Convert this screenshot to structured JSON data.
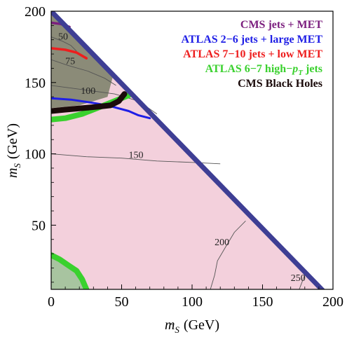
{
  "chart_data": {
    "type": "line",
    "title": "",
    "x_axis": {
      "label_main": "m",
      "label_sub": "S",
      "label_units": "(GeV)",
      "range": [
        0,
        200
      ],
      "ticks": [
        0,
        50,
        100,
        150,
        200
      ],
      "tick_labels": [
        "0",
        "50",
        "100",
        "150",
        "200"
      ]
    },
    "y_axis": {
      "label_main": "m",
      "label_sub": "S",
      "label_units": "(GeV)",
      "range": [
        5,
        200
      ],
      "ticks": [
        50,
        100,
        150,
        200
      ],
      "tick_labels": [
        "50",
        "100",
        "150",
        "200"
      ]
    },
    "grid": false,
    "legend_position": "top-right",
    "boundary": {
      "name": "kinematic boundary",
      "color": "#3e3e94",
      "points": [
        [
          0,
          200
        ],
        [
          192,
          5
        ]
      ]
    },
    "regions": [
      {
        "name": "allowed",
        "color": "#f3d0dc",
        "polygon": [
          [
            0,
            200
          ],
          [
            192,
            5
          ],
          [
            0,
            5
          ]
        ]
      },
      {
        "name": "excluded-upper",
        "color": "#8b8b78",
        "polygon": [
          [
            0,
            200
          ],
          [
            44,
            155
          ],
          [
            40,
            140
          ],
          [
            20,
            134
          ],
          [
            0,
            132
          ]
        ]
      },
      {
        "name": "excluded-lower-left",
        "color": "#a8c4a0",
        "polygon": [
          [
            0,
            29
          ],
          [
            6,
            24
          ],
          [
            14,
            20
          ],
          [
            21,
            15
          ],
          [
            26,
            5
          ],
          [
            0,
            5
          ]
        ]
      }
    ],
    "series": [
      {
        "name": "CMS jets + MET",
        "color": "#7b1e7e",
        "width": 3.5,
        "points": [
          [
            0,
            192
          ],
          [
            7,
            191
          ],
          [
            13,
            189
          ]
        ]
      },
      {
        "name": "ATLAS 2−6 jets + large MET",
        "color": "#1e1ee6",
        "width": 3,
        "points": [
          [
            0,
            139
          ],
          [
            14,
            138
          ],
          [
            28,
            136
          ],
          [
            40,
            134
          ],
          [
            55,
            130
          ],
          [
            62,
            127
          ],
          [
            70,
            125
          ]
        ]
      },
      {
        "name": "ATLAS 7−10 jets + low MET",
        "color": "#ee1e1e",
        "width": 3.5,
        "points": [
          [
            0,
            174
          ],
          [
            10,
            173
          ],
          [
            18,
            171
          ],
          [
            25,
            167
          ]
        ]
      },
      {
        "name": "ATLAS 6−7 high−p_T jets",
        "color": "#3ad12e",
        "width": 8,
        "points": [
          [
            0,
            124
          ],
          [
            10,
            125
          ],
          [
            22,
            128
          ],
          [
            35,
            133
          ],
          [
            45,
            137
          ],
          [
            55,
            141
          ]
        ],
        "second_points": [
          [
            0,
            29
          ],
          [
            6,
            26
          ],
          [
            12,
            22
          ],
          [
            18,
            18
          ],
          [
            22,
            12
          ],
          [
            25,
            5
          ]
        ]
      },
      {
        "name": "CMS Black Holes",
        "color": "#1a0a0a",
        "width": 8,
        "points": [
          [
            0,
            130
          ],
          [
            10,
            131
          ],
          [
            22,
            132
          ],
          [
            33,
            133
          ],
          [
            42,
            134
          ],
          [
            48,
            137
          ],
          [
            52,
            142
          ]
        ]
      }
    ],
    "contours": [
      {
        "value": "50",
        "points": [
          [
            0,
            182
          ],
          [
            8,
            179
          ],
          [
            14,
            176
          ],
          [
            18,
            172
          ]
        ]
      },
      {
        "value": "75",
        "points": [
          [
            0,
            166
          ],
          [
            12,
            162
          ],
          [
            26,
            158
          ],
          [
            38,
            153
          ],
          [
            46,
            148
          ]
        ]
      },
      {
        "value": "100",
        "points": [
          [
            0,
            148
          ],
          [
            15,
            146
          ],
          [
            30,
            144
          ],
          [
            45,
            142
          ],
          [
            62,
            137
          ],
          [
            75,
            128
          ]
        ]
      },
      {
        "value": "150",
        "points": [
          [
            0,
            100
          ],
          [
            25,
            98
          ],
          [
            50,
            97
          ],
          [
            75,
            95
          ],
          [
            100,
            94
          ],
          [
            120,
            93
          ]
        ]
      },
      {
        "value": "200",
        "points": [
          [
            113,
            5
          ],
          [
            116,
            15
          ],
          [
            118,
            25
          ],
          [
            124,
            35
          ],
          [
            130,
            45
          ],
          [
            138,
            53
          ]
        ]
      },
      {
        "value": "250",
        "points": [
          [
            176,
            5
          ],
          [
            178,
            10
          ],
          [
            181,
            18
          ]
        ]
      }
    ],
    "contour_labels": [
      {
        "text": "50",
        "x": 5,
        "y": 180
      },
      {
        "text": "75",
        "x": 10,
        "y": 163
      },
      {
        "text": "100",
        "x": 21,
        "y": 142
      },
      {
        "text": "150",
        "x": 55,
        "y": 97
      },
      {
        "text": "200",
        "x": 116,
        "y": 36
      },
      {
        "text": "250",
        "x": 170,
        "y": 11
      }
    ]
  }
}
